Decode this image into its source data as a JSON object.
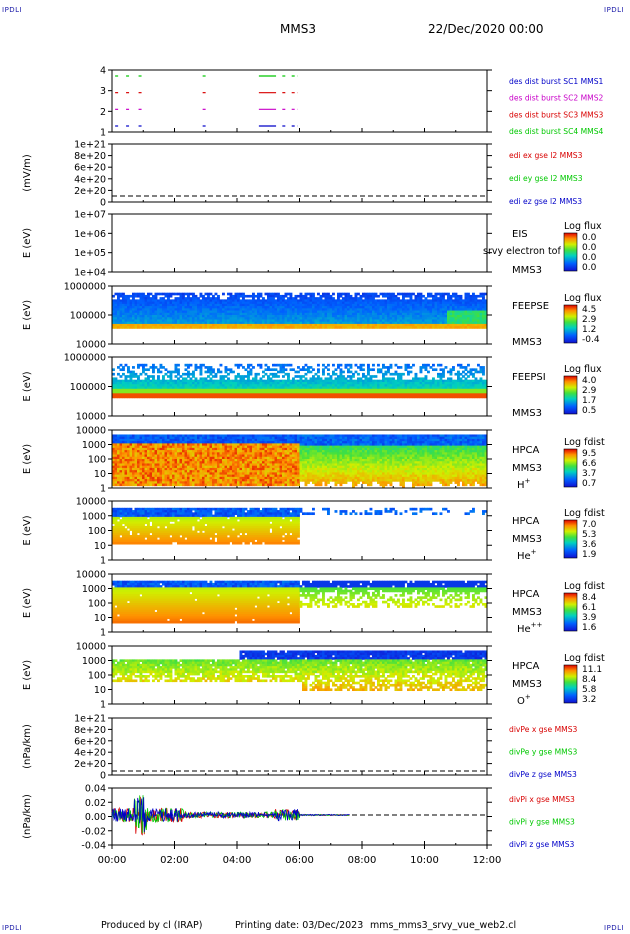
{
  "corner_labels": {
    "top_left": "IPDLI",
    "top_right": "IPDLI",
    "bottom_left": "IPDLI",
    "bottom_right": "IPDLI"
  },
  "header": {
    "spacecraft": "MMS3",
    "datetime": "22/Dec/2020 00:00"
  },
  "footer": {
    "produced_by": "Produced by cl (IRAP)",
    "printing_date": "Printing date: 03/Dec/2023",
    "filename": "mms_mms3_srvy_vue_web2.cl"
  },
  "colors": {
    "c1": "#0000c8",
    "c2": "#c800c8",
    "c3": "#d80000",
    "c4": "#00c800",
    "yellow": "#f0d800"
  },
  "chart_data": [
    {
      "id": "burst",
      "type": "timeline",
      "yticks": [
        "4",
        "3",
        "2",
        "1"
      ],
      "legend": [
        {
          "text": "des dist burst SC1 MMS1",
          "color": "#0000c8"
        },
        {
          "text": "des dist burst SC2 MMS2",
          "color": "#c800c8"
        },
        {
          "text": "des dist burst SC3 MMS3",
          "color": "#d80000"
        },
        {
          "text": "des dist burst SC4 MMS4",
          "color": "#00c800"
        }
      ],
      "intervals_hours": [
        [
          0.1,
          0.25
        ],
        [
          0.45,
          0.6
        ],
        [
          0.85,
          0.98
        ],
        [
          2.9,
          3.0
        ],
        [
          4.7,
          5.25
        ],
        [
          5.45,
          5.6
        ],
        [
          5.75,
          5.95
        ]
      ]
    },
    {
      "id": "edi",
      "type": "line",
      "ylabel": "(mV/m)",
      "yticks": [
        "1e+21",
        "8e+20",
        "6e+20",
        "4e+20",
        "2e+20",
        "0"
      ],
      "legend": [
        {
          "text": "edi ex gse l2 MMS3",
          "color": "#d80000"
        },
        {
          "text": "edi ey gse l2 MMS3",
          "color": "#00c800"
        },
        {
          "text": "edi ez gse l2 MMS3",
          "color": "#0000c8"
        }
      ]
    },
    {
      "id": "eis",
      "type": "heatmap",
      "ylabel": "E (eV)",
      "yticks": [
        "1e+07",
        "1e+06",
        "1e+05",
        "1e+04"
      ],
      "instrument": "EIS",
      "subtitle": "srvy electron tof",
      "spacecraft": "MMS3",
      "cbar_title": "Log flux",
      "cbar_ticks": [
        "0.0",
        "0.0",
        "0.0",
        "0.0"
      ]
    },
    {
      "id": "feepse",
      "type": "heatmap",
      "ylabel": "E (eV)",
      "yticks": [
        "1000000",
        "100000",
        "10000"
      ],
      "instrument": "FEEPSE",
      "spacecraft": "MMS3",
      "cbar_title": "Log flux",
      "cbar_ticks": [
        "4.5",
        "2.9",
        "1.2",
        "-0.4"
      ]
    },
    {
      "id": "feepsi",
      "type": "heatmap",
      "ylabel": "E (eV)",
      "yticks": [
        "1000000",
        "100000",
        "10000"
      ],
      "instrument": "FEEPSI",
      "spacecraft": "MMS3",
      "cbar_title": "Log flux",
      "cbar_ticks": [
        "4.0",
        "2.9",
        "1.7",
        "0.5"
      ]
    },
    {
      "id": "hpca_h",
      "type": "heatmap",
      "ylabel": "E (eV)",
      "yticks": [
        "10000",
        "1000",
        "100",
        "10",
        "1"
      ],
      "instrument": "HPCA",
      "spacecraft": "MMS3",
      "species": "H",
      "charge": "+",
      "cbar_title": "Log fdist",
      "cbar_ticks": [
        "9.5",
        "6.6",
        "3.7",
        "0.7"
      ]
    },
    {
      "id": "hpca_he",
      "type": "heatmap",
      "ylabel": "E (eV)",
      "yticks": [
        "10000",
        "1000",
        "100",
        "10",
        "1"
      ],
      "instrument": "HPCA",
      "spacecraft": "MMS3",
      "species": "He",
      "charge": "+",
      "cbar_title": "Log fdist",
      "cbar_ticks": [
        "7.0",
        "5.3",
        "3.6",
        "1.9"
      ]
    },
    {
      "id": "hpca_hepp",
      "type": "heatmap",
      "ylabel": "E (eV)",
      "yticks": [
        "10000",
        "1000",
        "100",
        "10",
        "1"
      ],
      "instrument": "HPCA",
      "spacecraft": "MMS3",
      "species": "He",
      "charge": "++",
      "cbar_title": "Log fdist",
      "cbar_ticks": [
        "8.4",
        "6.1",
        "3.9",
        "1.6"
      ]
    },
    {
      "id": "hpca_o",
      "type": "heatmap",
      "ylabel": "E (eV)",
      "yticks": [
        "10000",
        "1000",
        "100",
        "10",
        "1"
      ],
      "instrument": "HPCA",
      "spacecraft": "MMS3",
      "species": "O",
      "charge": "+",
      "cbar_title": "Log fdist",
      "cbar_ticks": [
        "11.1",
        "8.4",
        "5.8",
        "3.2"
      ]
    },
    {
      "id": "divpe",
      "type": "line",
      "ylabel": "(nPa/km)",
      "yticks": [
        "1e+21",
        "8e+20",
        "6e+20",
        "4e+20",
        "2e+20",
        "0"
      ],
      "legend": [
        {
          "text": "divPe x gse MMS3",
          "color": "#d80000"
        },
        {
          "text": "divPe y gse MMS3",
          "color": "#00c800"
        },
        {
          "text": "divPe z gse MMS3",
          "color": "#0000c8"
        }
      ]
    },
    {
      "id": "divpi",
      "type": "line",
      "ylabel": "(nPa/km)",
      "yticks": [
        "0.04",
        "0.02",
        "0.00",
        "-0.02",
        "-0.04"
      ],
      "ylim": [
        -0.05,
        0.045
      ],
      "legend": [
        {
          "text": "divPi x gse MMS3",
          "color": "#d80000"
        },
        {
          "text": "divPi y gse MMS3",
          "color": "#00c800"
        },
        {
          "text": "divPi z gse MMS3",
          "color": "#0000c8"
        }
      ]
    }
  ],
  "xaxis": {
    "ticks": [
      "00:00",
      "02:00",
      "04:00",
      "06:00",
      "08:00",
      "10:00",
      "12:00"
    ],
    "range_hours": [
      0,
      12
    ]
  }
}
